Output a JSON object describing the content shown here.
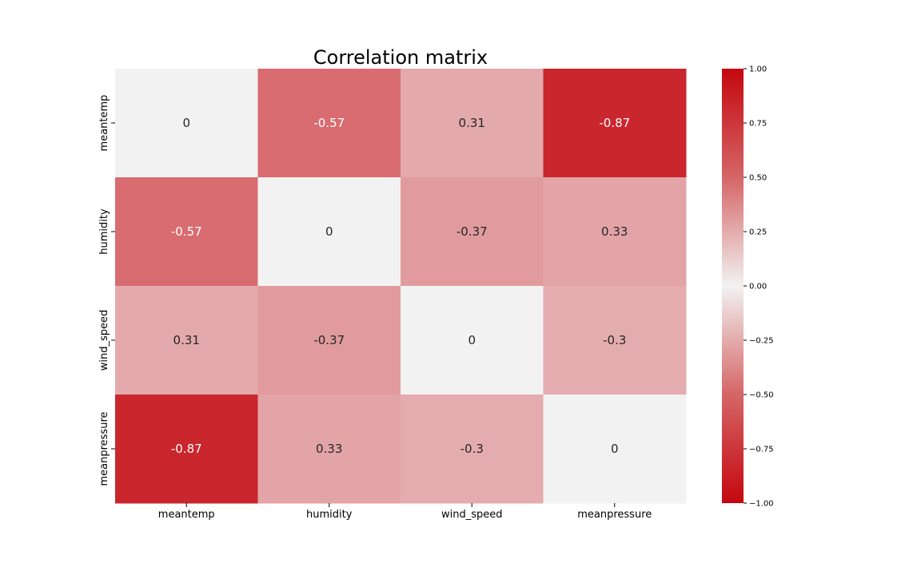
{
  "chart_data": {
    "type": "heatmap",
    "title": "Correlation matrix",
    "x_categories": [
      "meantemp",
      "humidity",
      "wind_speed",
      "meanpressure"
    ],
    "y_categories": [
      "meantemp",
      "humidity",
      "wind_speed",
      "meanpressure"
    ],
    "values": [
      [
        0,
        -0.57,
        0.31,
        -0.87
      ],
      [
        -0.57,
        0,
        -0.37,
        0.33
      ],
      [
        0.31,
        -0.37,
        0,
        -0.3
      ],
      [
        -0.87,
        0.33,
        -0.3,
        0
      ]
    ],
    "cell_labels": [
      [
        "0",
        "-0.57",
        "0.31",
        "-0.87"
      ],
      [
        "-0.57",
        "0",
        "-0.37",
        "0.33"
      ],
      [
        "0.31",
        "-0.37",
        "0",
        "-0.3"
      ],
      [
        "-0.87",
        "0.33",
        "-0.3",
        "0"
      ]
    ],
    "colorbar": {
      "range": [
        -1,
        1
      ],
      "ticks": [
        1,
        0.75,
        0.5,
        0.25,
        0,
        -0.25,
        -0.5,
        -0.75,
        -1
      ],
      "tick_labels": [
        "1.00",
        "0.75",
        "0.50",
        "0.25",
        "0.00",
        "−0.25",
        "−0.50",
        "−0.75",
        "−1.00"
      ],
      "position": "right"
    },
    "colors": {
      "negative_end": "#c4070f",
      "center": "#f2f2f2",
      "positive_end": "#c4070f",
      "text_dark": "#262626",
      "text_light": "#ffffff"
    },
    "grid": false
  }
}
